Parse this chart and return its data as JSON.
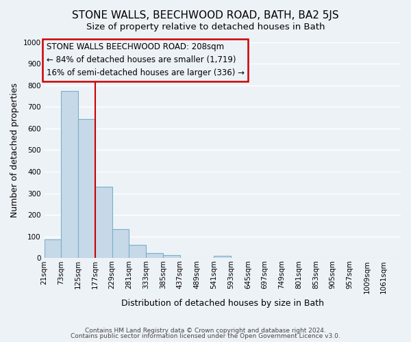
{
  "title": "STONE WALLS, BEECHWOOD ROAD, BATH, BA2 5JS",
  "subtitle": "Size of property relative to detached houses in Bath",
  "xlabel": "Distribution of detached houses by size in Bath",
  "ylabel": "Number of detached properties",
  "footer_lines": [
    "Contains HM Land Registry data © Crown copyright and database right 2024.",
    "Contains public sector information licensed under the Open Government Licence v3.0."
  ],
  "bin_labels": [
    "21sqm",
    "73sqm",
    "125sqm",
    "177sqm",
    "229sqm",
    "281sqm",
    "333sqm",
    "385sqm",
    "437sqm",
    "489sqm",
    "541sqm",
    "593sqm",
    "645sqm",
    "697sqm",
    "749sqm",
    "801sqm",
    "853sqm",
    "905sqm",
    "957sqm",
    "1009sqm",
    "1061sqm"
  ],
  "bar_values": [
    85,
    775,
    645,
    330,
    135,
    60,
    22,
    15,
    0,
    0,
    10,
    0,
    0,
    0,
    0,
    0,
    0,
    0,
    0,
    0,
    0
  ],
  "bar_color": "#c6d9e8",
  "bar_edge_color": "#7aafc8",
  "ylim": [
    0,
    1000
  ],
  "yticks": [
    0,
    100,
    200,
    300,
    400,
    500,
    600,
    700,
    800,
    900,
    1000
  ],
  "property_line_x": 3.0,
  "property_line_color": "#cc0000",
  "annotation_box_color": "#cc0000",
  "annotation_lines": [
    "STONE WALLS BEECHWOOD ROAD: 208sqm",
    "← 84% of detached houses are smaller (1,719)",
    "16% of semi-detached houses are larger (336) →"
  ],
  "background_color": "#edf2f7",
  "grid_color": "#ffffff",
  "title_fontsize": 11,
  "subtitle_fontsize": 9.5,
  "axis_label_fontsize": 9,
  "tick_fontsize": 7.5,
  "annotation_fontsize": 8.5,
  "footer_fontsize": 6.5
}
